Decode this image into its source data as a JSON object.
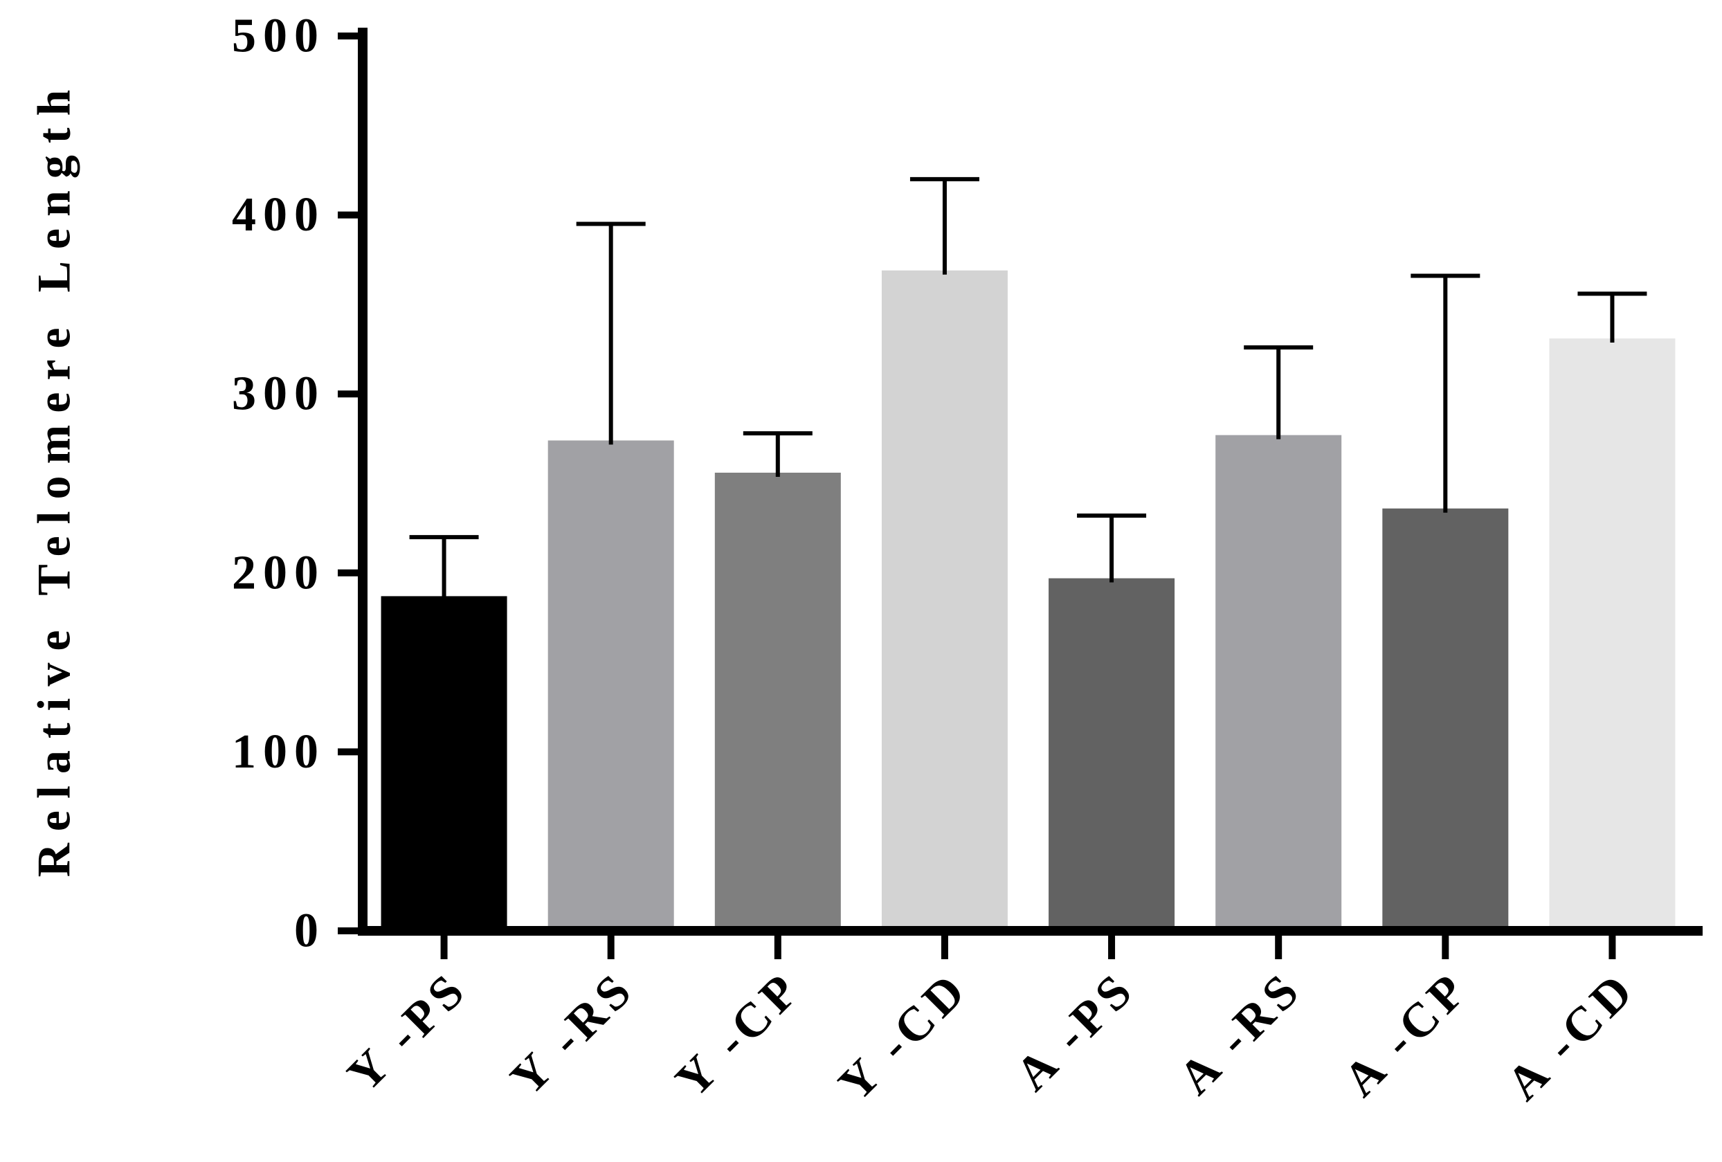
{
  "chart_data": {
    "type": "bar",
    "title": "",
    "xlabel": "",
    "ylabel": "Relative Telomere Length",
    "ylim": [
      0,
      500
    ],
    "yticks": [
      "0",
      "100",
      "200",
      "300",
      "400",
      "500"
    ],
    "categories": [
      "Y -PS",
      "Y -RS",
      "Y -CP",
      "Y -CD",
      "A -PS",
      "A -RS",
      "A -CP",
      "A -CD"
    ],
    "values": [
      187,
      274,
      256,
      369,
      197,
      277,
      236,
      331
    ],
    "errors": [
      33,
      121,
      22,
      51,
      35,
      49,
      130,
      25
    ],
    "colors": [
      "#000000",
      "#a1a1a5",
      "#7f7f7f",
      "#d3d3d3",
      "#626262",
      "#a1a1a5",
      "#626262",
      "#e6e6e6"
    ],
    "grid": false,
    "legend": "none"
  }
}
